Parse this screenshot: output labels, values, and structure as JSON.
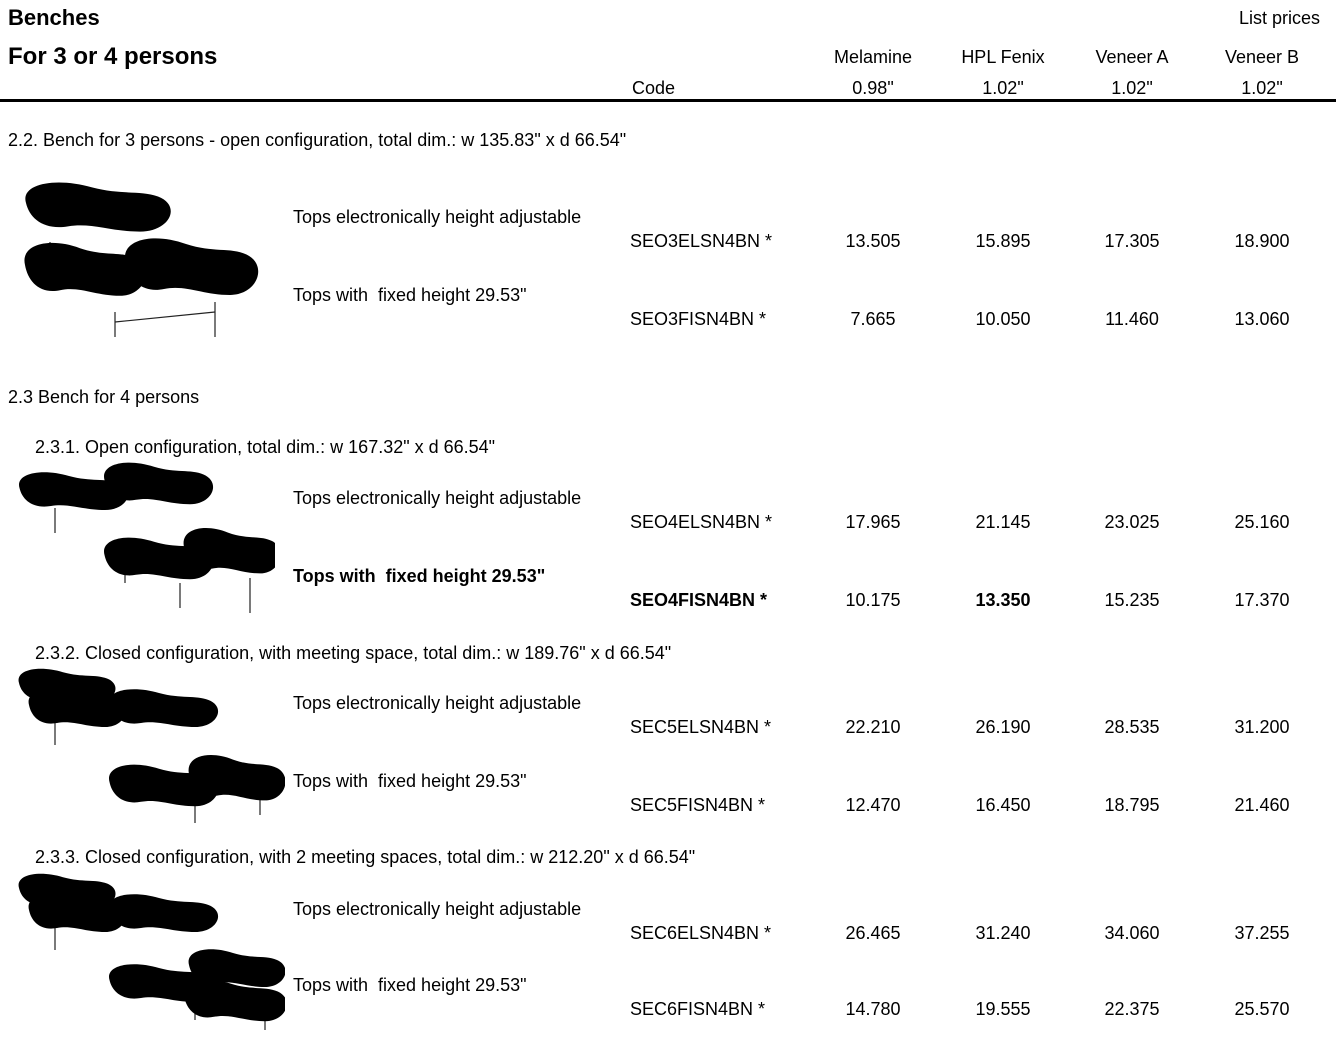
{
  "header": {
    "title": "Benches",
    "subtitle": "For 3 or 4 persons",
    "note": "List prices",
    "code_label": "Code",
    "columns": [
      {
        "name": "Melamine",
        "thickness": "0.98\""
      },
      {
        "name": "HPL Fenix",
        "thickness": "1.02\""
      },
      {
        "name": "Veneer A",
        "thickness": "1.02\""
      },
      {
        "name": "Veneer B",
        "thickness": "1.02\""
      }
    ]
  },
  "sections": [
    {
      "heading": "2.2. Bench for 3 persons - open configuration, total dim.: w 135.83\" x d 66.54\"",
      "rows": [
        {
          "label": "Tops electronically height adjustable",
          "code": "SEO3ELSN4BN *",
          "prices": [
            "13.505",
            "15.895",
            "17.305",
            "18.900"
          ]
        },
        {
          "label": "Tops with  fixed height 29.53\"",
          "code": "SEO3FISN4BN *",
          "prices": [
            "7.665",
            "10.050",
            "11.460",
            "13.060"
          ]
        }
      ]
    },
    {
      "heading": "2.3 Bench for 4 persons",
      "rows": []
    },
    {
      "heading": "2.3.1. Open configuration, total dim.: w 167.32\" x d 66.54\"",
      "rows": [
        {
          "label": "Tops electronically height adjustable",
          "code": "SEO4ELSN4BN *",
          "prices": [
            "17.965",
            "21.145",
            "23.025",
            "25.160"
          ]
        },
        {
          "label": "Tops with  fixed height 29.53\"",
          "code": "SEO4FISN4BN *",
          "prices": [
            "10.175",
            "13.350",
            "15.235",
            "17.370"
          ]
        }
      ]
    },
    {
      "heading": "2.3.2. Closed configuration, with meeting space, total dim.: w 189.76\" x d 66.54\"",
      "rows": [
        {
          "label": "Tops electronically height adjustable",
          "code": "SEC5ELSN4BN *",
          "prices": [
            "22.210",
            "26.190",
            "28.535",
            "31.200"
          ]
        },
        {
          "label": "Tops with  fixed height 29.53\"",
          "code": "SEC5FISN4BN *",
          "prices": [
            "12.470",
            "16.450",
            "18.795",
            "21.460"
          ]
        }
      ]
    },
    {
      "heading": "2.3.3. Closed configuration, with 2 meeting spaces, total dim.: w 212.20\" x d 66.54\"",
      "rows": [
        {
          "label": "Tops electronically height adjustable",
          "code": "SEC6ELSN4BN *",
          "prices": [
            "26.465",
            "31.240",
            "34.060",
            "37.255"
          ]
        },
        {
          "label": "Tops with  fixed height 29.53\"",
          "code": "SEC6FISN4BN *",
          "prices": [
            "14.780",
            "19.555",
            "22.375",
            "25.570"
          ]
        }
      ]
    }
  ]
}
